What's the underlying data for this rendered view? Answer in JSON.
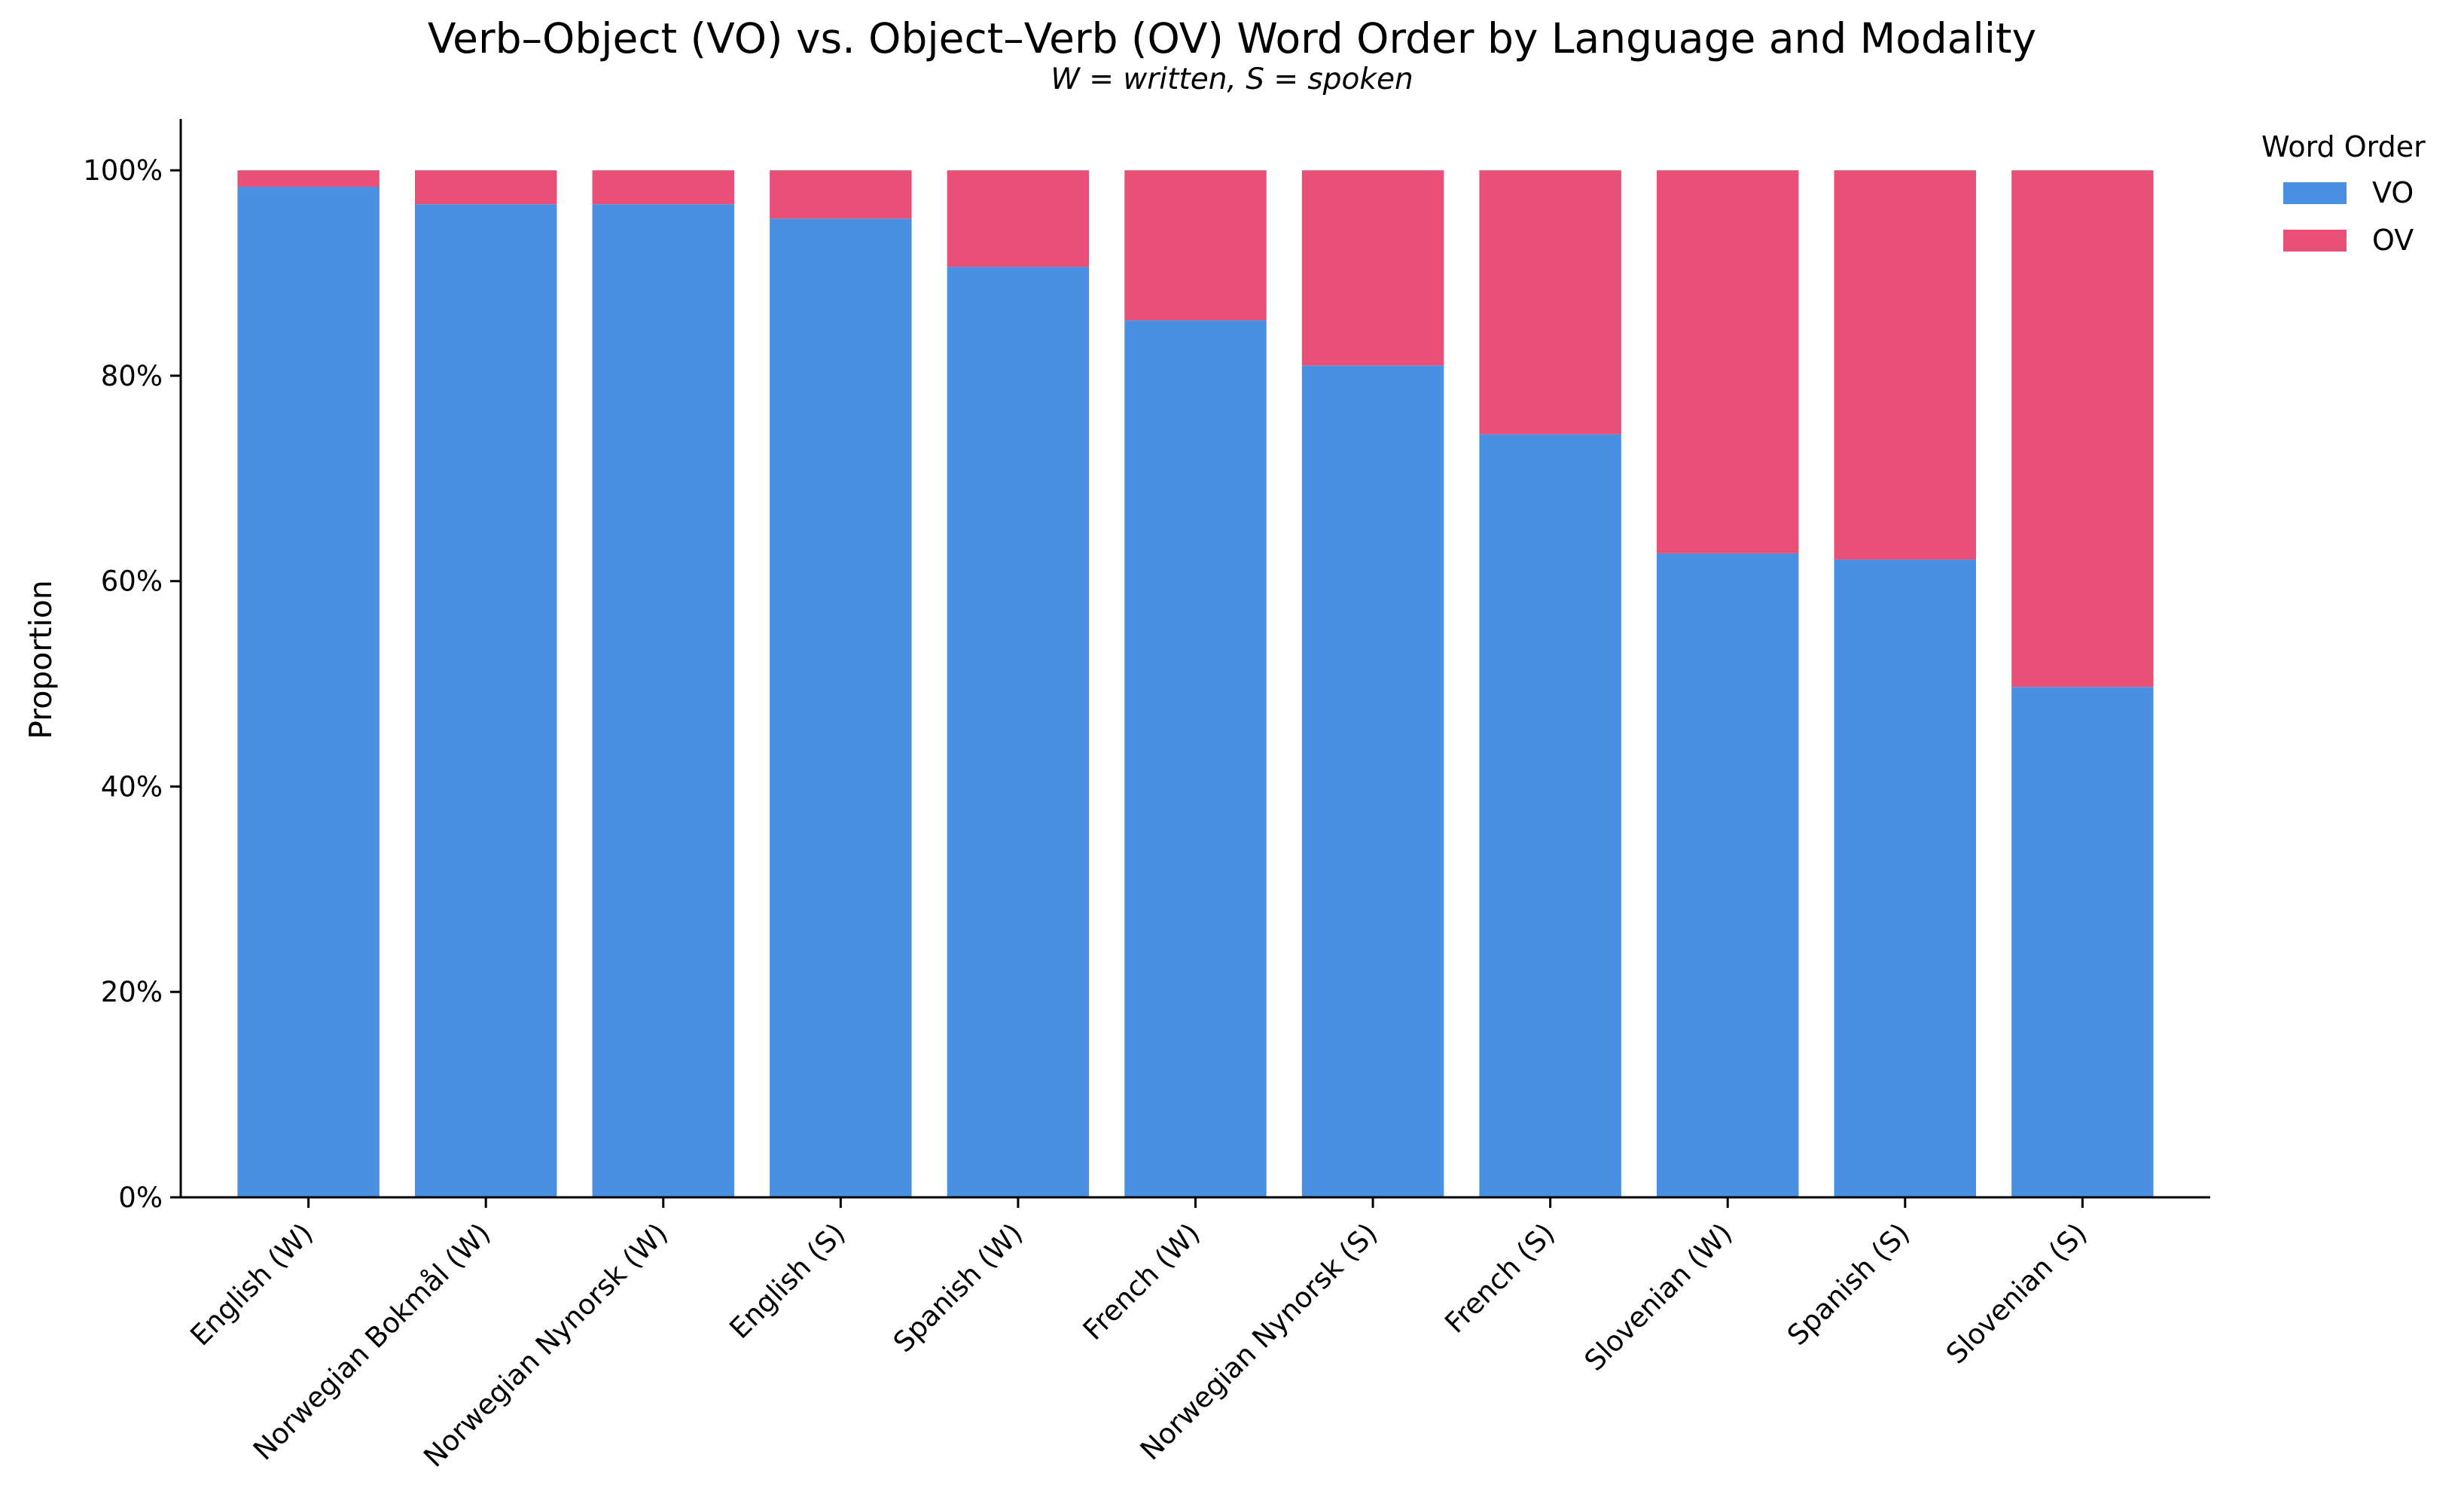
{
  "chart_data": {
    "type": "bar",
    "stacked": true,
    "title": "Verb–Object (VO) vs. Object–Verb (OV) Word Order by Language and Modality",
    "subtitle": "W = written, S = spoken",
    "xlabel": "",
    "ylabel": "Proportion",
    "ylim": [
      0,
      1.05
    ],
    "yticks": [
      0,
      0.2,
      0.4,
      0.6,
      0.8,
      1.0
    ],
    "ytick_labels": [
      "0%",
      "20%",
      "40%",
      "60%",
      "80%",
      "100%"
    ],
    "categories": [
      "English (W)",
      "Norwegian Bokmål (W)",
      "Norwegian Nynorsk (W)",
      "English (S)",
      "Spanish (W)",
      "French (W)",
      "Norwegian Nynorsk (S)",
      "French (S)",
      "Slovenian (W)",
      "Spanish (S)",
      "Slovenian (S)"
    ],
    "series": [
      {
        "name": "VO",
        "color": "#4a90e2",
        "values": [
          0.984,
          0.967,
          0.967,
          0.953,
          0.906,
          0.854,
          0.81,
          0.743,
          0.627,
          0.621,
          0.497
        ]
      },
      {
        "name": "OV",
        "color": "#e85077",
        "values": [
          0.016,
          0.033,
          0.033,
          0.047,
          0.094,
          0.146,
          0.19,
          0.257,
          0.373,
          0.379,
          0.503
        ]
      }
    ],
    "grid": false,
    "legend": {
      "title": "Word Order",
      "position": "outside-right-top"
    }
  }
}
